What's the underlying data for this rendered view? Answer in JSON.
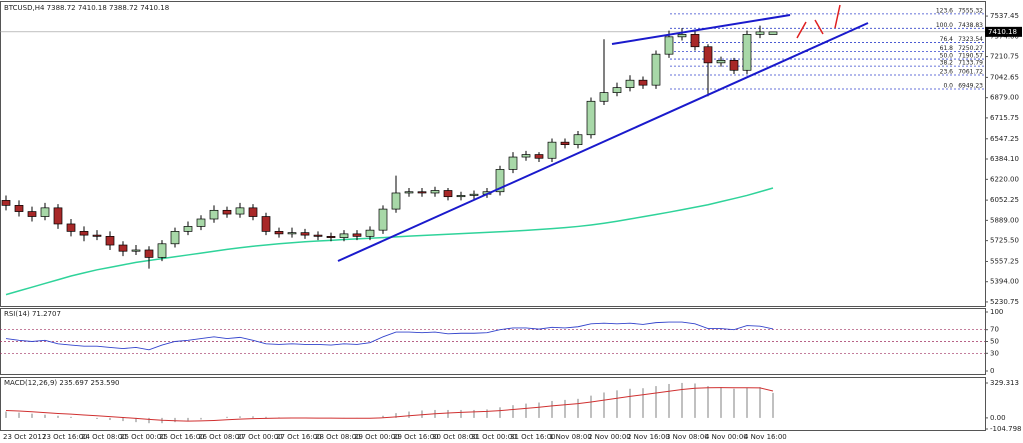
{
  "chart_data": [
    {
      "type": "candlestick",
      "title": "BTCUSD,H4  7388.72 7410.18 7388.72 7410.18",
      "categories": [
        "23 Oct 2017",
        null,
        null,
        "23 Oct 16:00",
        null,
        null,
        "24 Oct 08:00",
        null,
        null,
        "25 Oct 00:00",
        null,
        null,
        "25 Oct 16:00",
        null,
        null,
        "26 Oct 08:00",
        null,
        null,
        "27 Oct 00:00",
        null,
        null,
        "27 Oct 16:00",
        null,
        null,
        "28 Oct 08:00",
        null,
        null,
        "29 Oct 00:00",
        null,
        null,
        "29 Oct 16:00",
        null,
        null,
        "30 Oct 08:00",
        null,
        null,
        "31 Oct 00:00",
        null,
        null,
        "31 Oct 16:00",
        null,
        null,
        "1 Nov 08:00",
        null,
        null,
        "2 Nov 00:00",
        null,
        null,
        "2 Nov 16:00",
        null,
        null,
        "3 Nov 08:00",
        null,
        null,
        "4 Nov 00:00",
        null,
        null,
        "4 Nov 16:00",
        null,
        null
      ],
      "open": [
        6050,
        6010,
        5960,
        5920,
        5990,
        5860,
        5800,
        5770,
        5760,
        5690,
        5640,
        5650,
        5590,
        5700,
        5800,
        5840,
        5900,
        5970,
        5940,
        5990,
        5920,
        5800,
        5780,
        5790,
        5770,
        5760,
        5750,
        5780,
        5760,
        5810,
        5980,
        6110,
        6120,
        6110,
        6130,
        6080,
        6090,
        6100,
        6120,
        6300,
        6400,
        6420,
        6390,
        6520,
        6500,
        6580,
        6850,
        6920,
        6960,
        7020,
        6980,
        7230,
        7370,
        7390,
        7290,
        7160,
        7180,
        7100,
        7390,
        7388.72
      ],
      "high": [
        6090,
        6050,
        6000,
        6030,
        6020,
        5900,
        5840,
        5810,
        5800,
        5720,
        5690,
        5680,
        5730,
        5830,
        5880,
        5930,
        6010,
        6000,
        6030,
        6020,
        5950,
        5830,
        5830,
        5820,
        5800,
        5790,
        5810,
        5810,
        5840,
        6010,
        6250,
        6150,
        6150,
        6160,
        6150,
        6120,
        6130,
        6150,
        6330,
        6440,
        6450,
        6440,
        6550,
        6550,
        6610,
        6880,
        7350,
        7000,
        7060,
        7050,
        7260,
        7420,
        7440,
        7420,
        7310,
        7210,
        7200,
        7420,
        7460,
        7410.18
      ],
      "low": [
        5970,
        5920,
        5880,
        5890,
        5820,
        5760,
        5720,
        5730,
        5650,
        5600,
        5610,
        5500,
        5560,
        5670,
        5770,
        5810,
        5870,
        5910,
        5910,
        5890,
        5770,
        5750,
        5750,
        5740,
        5730,
        5720,
        5720,
        5730,
        5730,
        5780,
        5950,
        6080,
        6080,
        6080,
        6050,
        6050,
        6060,
        6070,
        6090,
        6270,
        6370,
        6360,
        6360,
        6470,
        6470,
        6550,
        6820,
        6890,
        6930,
        6950,
        6950,
        7200,
        7340,
        7260,
        6890,
        7130,
        7070,
        7070,
        7360,
        7388.72
      ],
      "close": [
        6010,
        5960,
        5920,
        5990,
        5860,
        5800,
        5770,
        5760,
        5690,
        5640,
        5650,
        5590,
        5700,
        5800,
        5840,
        5900,
        5970,
        5940,
        5990,
        5920,
        5800,
        5780,
        5790,
        5770,
        5760,
        5750,
        5780,
        5760,
        5810,
        5980,
        6110,
        6120,
        6110,
        6130,
        6080,
        6090,
        6100,
        6120,
        6300,
        6400,
        6420,
        6390,
        6520,
        6500,
        6580,
        6850,
        6920,
        6960,
        7020,
        6980,
        7230,
        7370,
        7390,
        7290,
        7160,
        7180,
        7100,
        7390,
        7410,
        7410.18
      ],
      "ma": [
        5290,
        5320,
        5350,
        5380,
        5410,
        5440,
        5465,
        5490,
        5510,
        5530,
        5550,
        5565,
        5580,
        5595,
        5610,
        5625,
        5640,
        5655,
        5668,
        5680,
        5690,
        5700,
        5708,
        5716,
        5722,
        5728,
        5735,
        5740,
        5745,
        5750,
        5756,
        5762,
        5767,
        5772,
        5777,
        5782,
        5787,
        5792,
        5797,
        5802,
        5808,
        5815,
        5822,
        5830,
        5840,
        5852,
        5866,
        5882,
        5900,
        5918,
        5936,
        5955,
        5975,
        5995,
        6015,
        6040,
        6065,
        6090,
        6120,
        6150
      ],
      "up_color": "#a8d8a8",
      "down_color": "#a82828",
      "ma_color": "#2fd39a",
      "fib_color": "#3344cc",
      "fib": [
        {
          "level": "123.6",
          "price": 7555.32
        },
        {
          "level": "100.0",
          "price": 7438.83
        },
        {
          "level": "76.4",
          "price": 7323.54
        },
        {
          "level": "61.8",
          "price": 7250.27
        },
        {
          "level": "50.0",
          "price": 7190.57
        },
        {
          "level": "38.2",
          "price": 7133.79
        },
        {
          "level": "23.6",
          "price": 7061.72
        },
        {
          "level": "0.0",
          "price": 6949.23
        }
      ],
      "ylim": [
        5198,
        7651
      ],
      "yticks": [
        7537.45,
        {
          "value": 7374,
          "label": "7374.00"
        },
        7210.75,
        7042.65,
        {
          "value": 6879,
          "label": "6879.00"
        },
        6715.75,
        6547.25,
        {
          "value": 6384.1,
          "label": "6384.10"
        },
        {
          "value": 6220,
          "label": "6220.00"
        },
        6052.25,
        {
          "value": 5889,
          "label": "5889.00"
        },
        {
          "value": 5725.5,
          "label": "5725.50"
        },
        5557.25,
        {
          "value": 5394,
          "label": "5394.00"
        },
        5230.75
      ]
    },
    {
      "type": "line",
      "title": "RSI(14) 71.2707",
      "color": "#3344cc",
      "values": [
        55,
        52,
        50,
        52,
        46,
        44,
        42,
        42,
        40,
        38,
        40,
        36,
        44,
        50,
        52,
        55,
        58,
        55,
        57,
        52,
        46,
        45,
        46,
        45,
        45,
        44,
        46,
        45,
        48,
        58,
        66,
        66,
        65,
        66,
        63,
        64,
        64,
        65,
        70,
        73,
        73,
        71,
        74,
        73,
        75,
        80,
        81,
        80,
        81,
        79,
        82,
        83,
        83,
        80,
        72,
        72,
        70,
        77,
        76,
        71.27
      ],
      "ylim": [
        0,
        100
      ],
      "yticks": [
        100,
        70,
        50,
        30,
        0
      ],
      "levels": [
        70,
        50,
        30
      ],
      "level_color": "#a03060"
    },
    {
      "type": "macd",
      "title": "MACD(12,26,9) 235.697 253.590",
      "bar_color": "#c0c0c0",
      "signal_color": "#d03030",
      "values": [
        60,
        50,
        40,
        30,
        20,
        10,
        0,
        -10,
        -20,
        -30,
        -40,
        -50,
        -50,
        -40,
        -30,
        -15,
        0,
        10,
        15,
        15,
        10,
        5,
        0,
        -5,
        -5,
        -5,
        -5,
        -5,
        0,
        20,
        45,
        60,
        70,
        75,
        75,
        75,
        75,
        80,
        100,
        120,
        135,
        145,
        160,
        170,
        180,
        210,
        240,
        260,
        275,
        280,
        300,
        320,
        330,
        325,
        300,
        290,
        275,
        285,
        290,
        235.697
      ],
      "signal": [
        70,
        65,
        58,
        50,
        42,
        35,
        27,
        20,
        12,
        4,
        -5,
        -14,
        -22,
        -27,
        -30,
        -28,
        -24,
        -18,
        -12,
        -7,
        -4,
        -2,
        -1,
        -1,
        -2,
        -2,
        -3,
        -3,
        -3,
        1,
        10,
        20,
        30,
        39,
        46,
        52,
        57,
        61,
        69,
        79,
        90,
        101,
        113,
        124,
        135,
        150,
        168,
        185,
        203,
        218,
        235,
        252,
        268,
        280,
        285,
        286,
        285,
        285,
        283,
        253.59
      ],
      "ylim": [
        -104.798,
        329.313
      ],
      "yticks": [
        329.313,
        {
          "value": 0,
          "label": "0.00"
        },
        -104.798
      ]
    }
  ]
}
